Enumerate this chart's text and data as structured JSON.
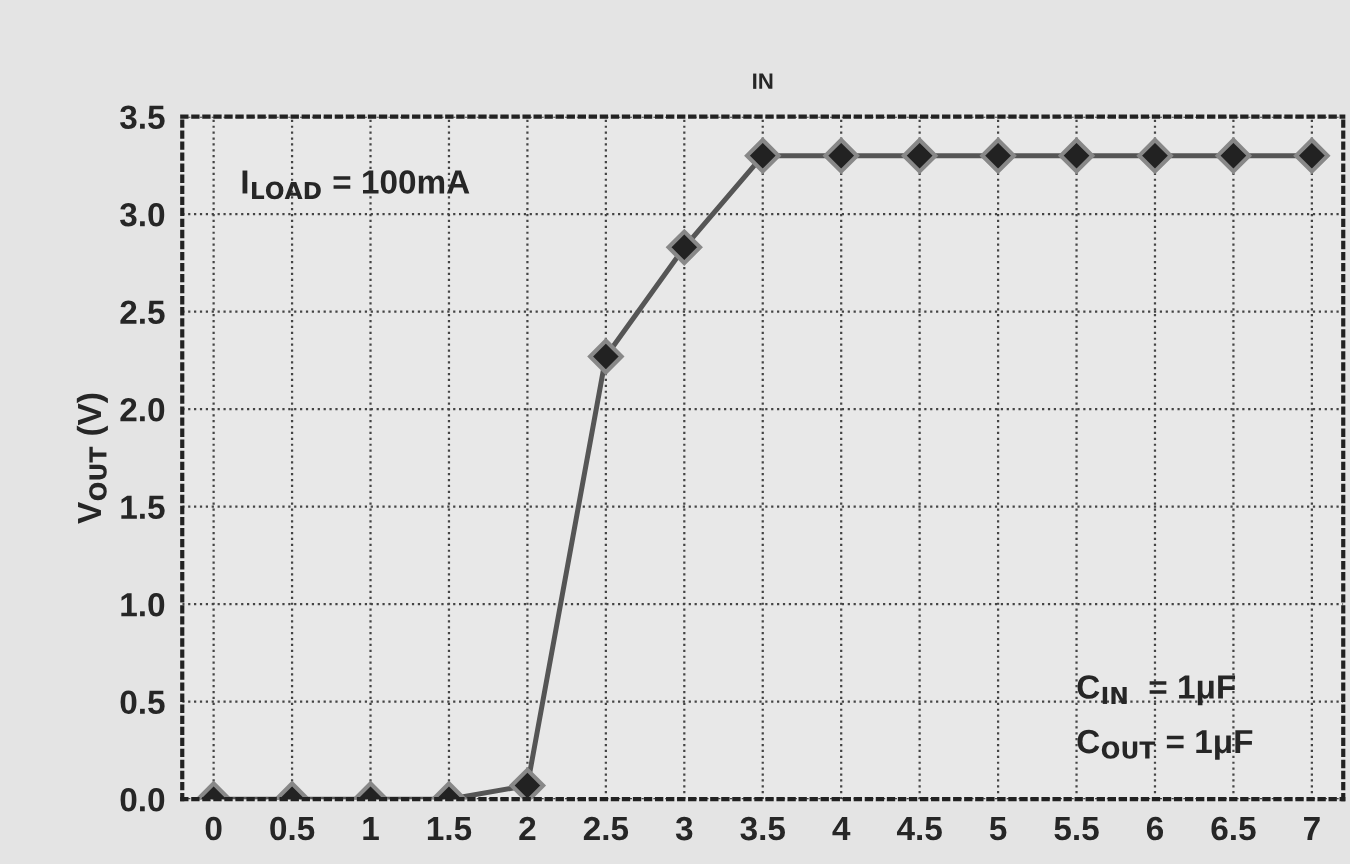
{
  "chart_data": {
    "type": "line",
    "title": "IN",
    "ylabel": "V$_{OUT}$ (V)",
    "x": [
      0,
      0.5,
      1,
      1.5,
      2,
      2.5,
      3,
      3.5,
      4,
      4.5,
      5,
      5.5,
      6,
      6.5,
      7
    ],
    "series": [
      {
        "color": "#555555",
        "values": [
          0,
          0,
          0,
          0,
          0.07,
          2.27,
          2.83,
          3.3,
          3.3,
          3.3,
          3.3,
          3.3,
          3.3,
          3.3,
          3.3
        ]
      }
    ],
    "xlim": [
      -0.2,
      7.2
    ],
    "xticks": [
      0,
      0.5,
      1,
      1.5,
      2,
      2.5,
      3,
      3.5,
      4,
      4.5,
      5,
      5.5,
      6,
      6.5,
      7
    ],
    "ylim": [
      0,
      3.5
    ],
    "yticks": [
      {
        "value": 0,
        "label": "0.0"
      },
      {
        "value": 0.5,
        "label": "0.5"
      },
      {
        "value": 1,
        "label": "1.0"
      },
      {
        "value": 1.5,
        "label": "1.5"
      },
      {
        "value": 2,
        "label": "2.0"
      },
      {
        "value": 2.5,
        "label": "2.5"
      },
      {
        "value": 3,
        "label": "3.0"
      },
      {
        "value": 3.5,
        "label": "3.5"
      }
    ],
    "grid": true,
    "marker": "diamond",
    "line_style": "solid",
    "annotations": [
      "I$_{LOAD}$ = 100mA",
      "C$_{IN}$  = 1μF",
      "C$_{OUT}$ = 1μF"
    ]
  }
}
